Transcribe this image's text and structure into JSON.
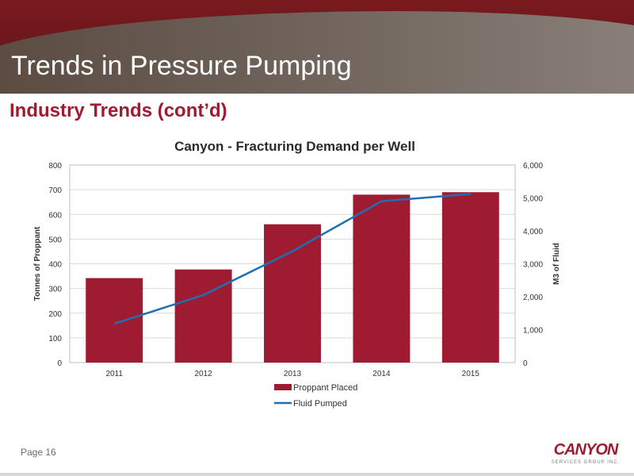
{
  "header": {
    "title": "Trends in Pressure Pumping",
    "subtitle": "Industry Trends (cont’d)"
  },
  "footer": {
    "page_label": "Page 16",
    "logo_text": "CANYON",
    "logo_subtext": "SERVICES GROUP INC."
  },
  "colors": {
    "banner": "#7a1a1f",
    "accent": "#9e1b32",
    "bar": "#9e1b32",
    "line": "#1f6fb2"
  },
  "chart_data": {
    "type": "bar",
    "title": "Canyon - Fracturing Demand per Well",
    "categories": [
      "2011",
      "2012",
      "2013",
      "2014",
      "2015"
    ],
    "series": [
      {
        "name": "Proppant Placed",
        "type": "bar",
        "axis": "left",
        "values": [
          342,
          377,
          560,
          680,
          690
        ]
      },
      {
        "name": "Fluid Pumped",
        "type": "line",
        "axis": "right",
        "values": [
          1180,
          2050,
          3380,
          4900,
          5120
        ]
      }
    ],
    "ylabel": "Tonnes of Proppant",
    "ylim": [
      0,
      800
    ],
    "yticks": [
      "0",
      "100",
      "200",
      "300",
      "400",
      "500",
      "600",
      "700",
      "800"
    ],
    "y2label": "M3 of Fluid",
    "y2lim": [
      0,
      6000
    ],
    "y2ticks": [
      "0",
      "1,000",
      "2,000",
      "3,000",
      "4,000",
      "5,000",
      "6,000"
    ],
    "grid": true,
    "legend": "bottom"
  }
}
